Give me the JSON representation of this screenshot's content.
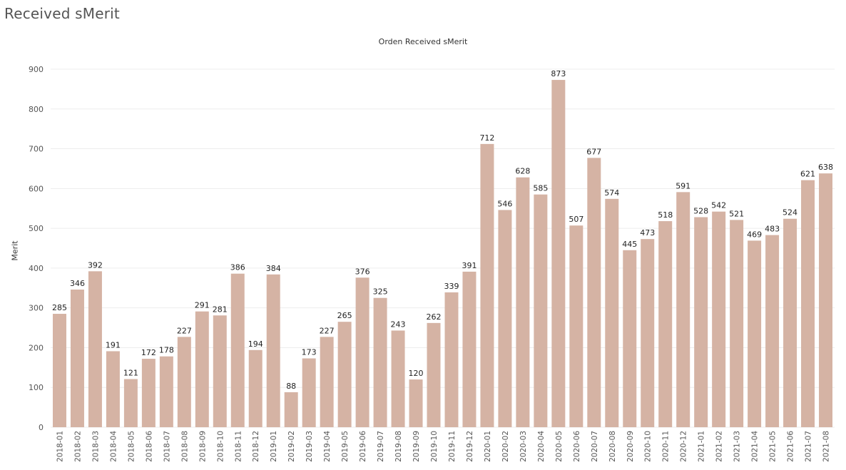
{
  "page": {
    "title": "Received sMerit"
  },
  "colors": {
    "bar": "#d5b3a4",
    "grid": "#ededed",
    "tick_text": "#555555",
    "label_text": "#222222"
  },
  "chart_data": {
    "type": "bar",
    "title": "Orden Received sMerit",
    "xlabel": "",
    "ylabel": "Merit",
    "ylim": [
      0,
      950
    ],
    "yticks": [
      0,
      100,
      200,
      300,
      400,
      500,
      600,
      700,
      800,
      900
    ],
    "grid": true,
    "legend": "none",
    "categories": [
      "2018-01",
      "2018-02",
      "2018-03",
      "2018-04",
      "2018-05",
      "2018-06",
      "2018-07",
      "2018-08",
      "2018-09",
      "2018-10",
      "2018-11",
      "2018-12",
      "2019-01",
      "2019-02",
      "2019-03",
      "2019-04",
      "2019-05",
      "2019-06",
      "2019-07",
      "2019-08",
      "2019-09",
      "2019-10",
      "2019-11",
      "2019-12",
      "2020-01",
      "2020-02",
      "2020-03",
      "2020-04",
      "2020-05",
      "2020-06",
      "2020-07",
      "2020-08",
      "2020-09",
      "2020-10",
      "2020-11",
      "2020-12",
      "2021-01",
      "2021-02",
      "2021-03",
      "2021-04",
      "2021-05",
      "2021-06",
      "2021-07",
      "2021-08"
    ],
    "values": [
      285,
      346,
      392,
      191,
      121,
      172,
      178,
      227,
      291,
      281,
      386,
      194,
      384,
      88,
      173,
      227,
      265,
      376,
      325,
      243,
      120,
      262,
      339,
      391,
      712,
      546,
      628,
      585,
      873,
      507,
      677,
      574,
      445,
      473,
      518,
      591,
      528,
      542,
      521,
      469,
      483,
      524,
      621,
      638
    ]
  }
}
